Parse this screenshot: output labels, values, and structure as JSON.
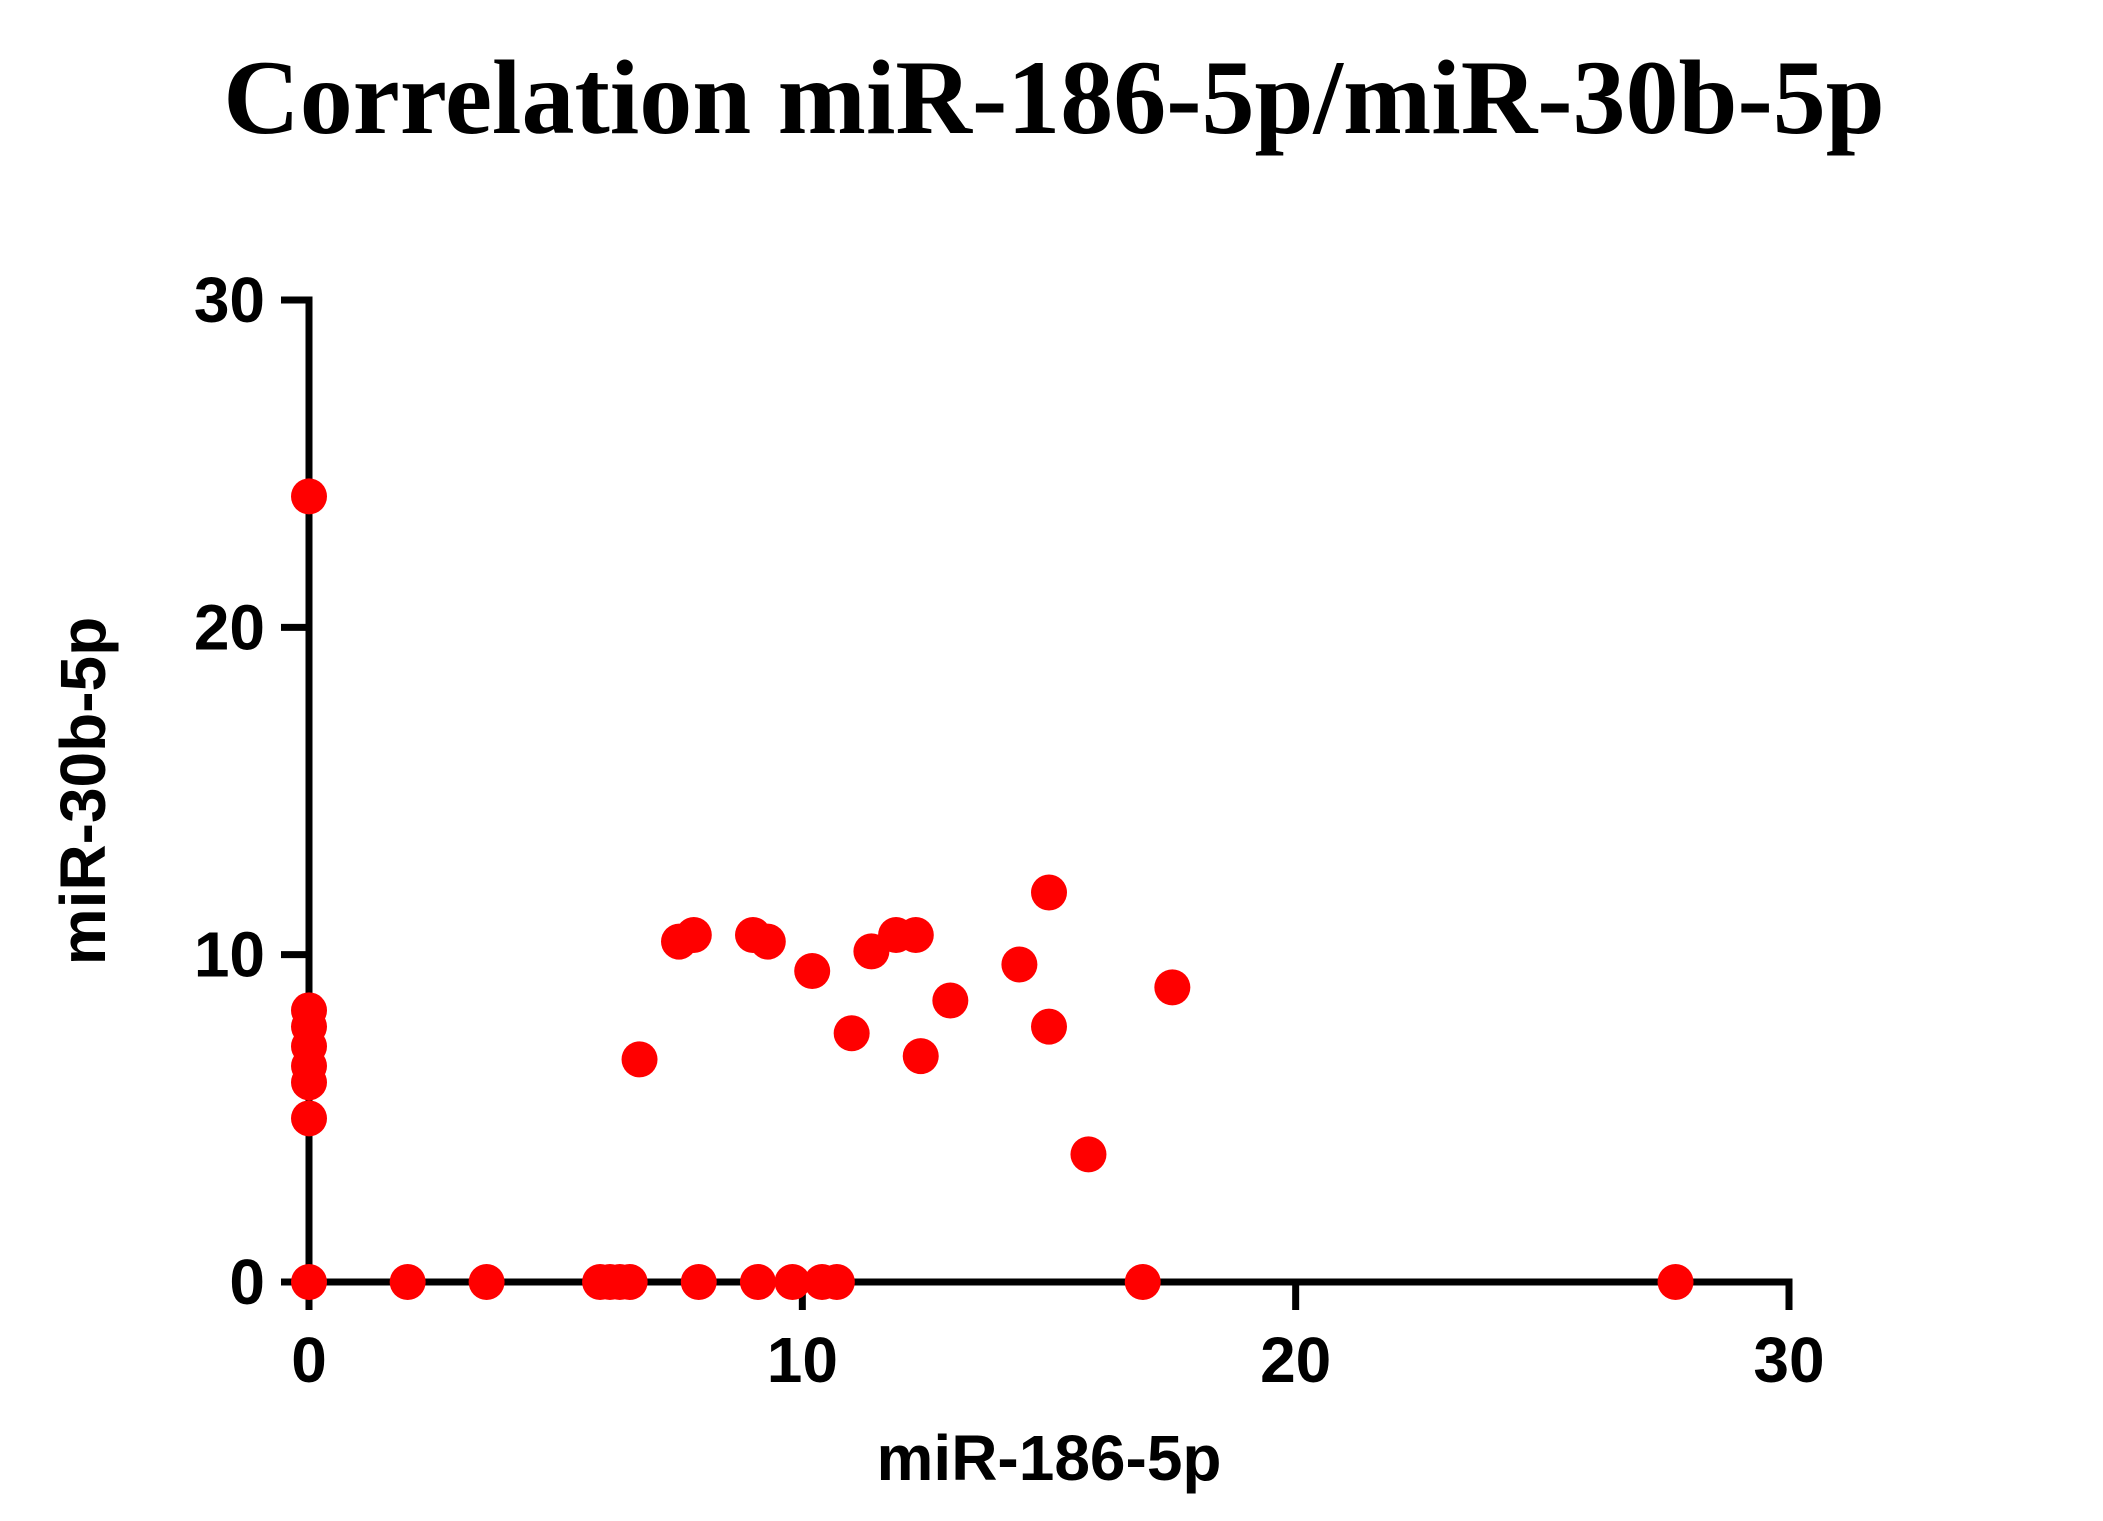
{
  "chart_data": {
    "type": "scatter",
    "title": "Correlation miR-186-5p/miR-30b-5p",
    "xlabel": "miR-186-5p",
    "ylabel": "miR-30b-5p",
    "xlim": [
      0,
      30
    ],
    "ylim": [
      0,
      30
    ],
    "xticks": [
      "0",
      "10",
      "20",
      "30"
    ],
    "yticks": [
      "0",
      "10",
      "20",
      "30"
    ],
    "grid": false,
    "point_color": "#ff0000",
    "series": [
      {
        "name": "samples",
        "points": [
          {
            "x": 0,
            "y": 24.0
          },
          {
            "x": 0,
            "y": 8.3
          },
          {
            "x": 0,
            "y": 7.8
          },
          {
            "x": 0,
            "y": 7.2
          },
          {
            "x": 0,
            "y": 6.6
          },
          {
            "x": 0,
            "y": 6.1
          },
          {
            "x": 0,
            "y": 5.0
          },
          {
            "x": 0,
            "y": 0
          },
          {
            "x": 2.0,
            "y": 0
          },
          {
            "x": 3.6,
            "y": 0
          },
          {
            "x": 5.9,
            "y": 0
          },
          {
            "x": 6.1,
            "y": 0
          },
          {
            "x": 6.3,
            "y": 0
          },
          {
            "x": 6.5,
            "y": 0
          },
          {
            "x": 6.7,
            "y": 6.8
          },
          {
            "x": 7.5,
            "y": 10.4
          },
          {
            "x": 7.8,
            "y": 10.6
          },
          {
            "x": 7.9,
            "y": 0
          },
          {
            "x": 9.0,
            "y": 10.6
          },
          {
            "x": 9.3,
            "y": 10.4
          },
          {
            "x": 9.1,
            "y": 0
          },
          {
            "x": 9.8,
            "y": 0
          },
          {
            "x": 10.2,
            "y": 9.5
          },
          {
            "x": 10.4,
            "y": 0
          },
          {
            "x": 10.7,
            "y": 0
          },
          {
            "x": 11.0,
            "y": 7.6
          },
          {
            "x": 11.4,
            "y": 10.1
          },
          {
            "x": 11.9,
            "y": 10.6
          },
          {
            "x": 12.3,
            "y": 10.6
          },
          {
            "x": 12.4,
            "y": 6.9
          },
          {
            "x": 13.0,
            "y": 8.6
          },
          {
            "x": 14.4,
            "y": 9.7
          },
          {
            "x": 15.0,
            "y": 11.9
          },
          {
            "x": 15.0,
            "y": 7.8
          },
          {
            "x": 15.8,
            "y": 3.9
          },
          {
            "x": 16.9,
            "y": 0
          },
          {
            "x": 17.5,
            "y": 9.0
          },
          {
            "x": 27.7,
            "y": 0
          }
        ]
      }
    ]
  }
}
